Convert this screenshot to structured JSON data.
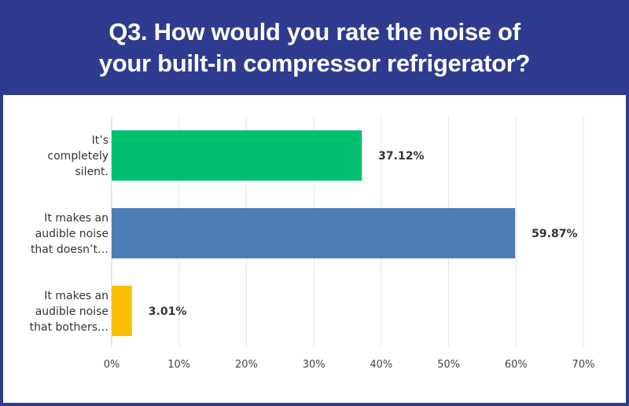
{
  "header": {
    "title_line1": "Q3. How would you rate the noise of",
    "title_line2": "your built-in compressor refrigerator?"
  },
  "chart_data": {
    "type": "bar",
    "orientation": "horizontal",
    "categories": [
      [
        "It’s",
        "completely",
        "silent."
      ],
      [
        "It makes an",
        "audible noise",
        "that doesn’t…"
      ],
      [
        "It makes an",
        "audible noise",
        "that bothers…"
      ]
    ],
    "values": [
      37.12,
      59.87,
      3.01
    ],
    "value_labels": [
      "37.12%",
      "59.87%",
      "3.01%"
    ],
    "colors": [
      "#00bf6f",
      "#507cb6",
      "#f9be00"
    ],
    "xlim": [
      0,
      70
    ],
    "xticks": [
      0,
      10,
      20,
      30,
      40,
      50,
      60,
      70
    ],
    "xtick_labels": [
      "0%",
      "10%",
      "20%",
      "30%",
      "40%",
      "50%",
      "60%",
      "70%"
    ],
    "grid": true,
    "legend": "none"
  }
}
